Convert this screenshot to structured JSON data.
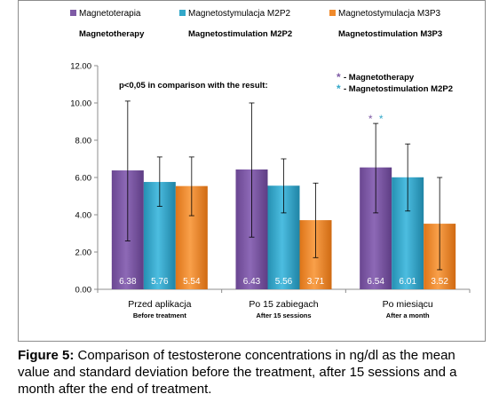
{
  "chart_data": {
    "type": "bar",
    "legend": [
      {
        "label": "Magnetoterapia",
        "sublabel": "Magnetotherapy",
        "color": "#7e5aa5"
      },
      {
        "label": "Magnetostymulacja M2P2",
        "sublabel": "Magnetostimulation M2P2",
        "color": "#33a8c9"
      },
      {
        "label": "Magnetostymulacja M3P3",
        "sublabel": "Magnetostimulation M3P3",
        "color": "#f08a2c"
      }
    ],
    "categories": [
      {
        "label": "Przed aplikacja",
        "sublabel": "Before treatment"
      },
      {
        "label": "Po 15 zabiegach",
        "sublabel": "After 15 sessions"
      },
      {
        "label": "Po miesiącu",
        "sublabel": "After a month"
      }
    ],
    "series": [
      {
        "name": "Magnetoterapia",
        "values": [
          6.38,
          6.43,
          6.54
        ],
        "err_low": [
          2.6,
          2.8,
          4.1
        ],
        "err_high": [
          10.1,
          10.0,
          8.9
        ],
        "value_labels": [
          "6.38",
          "6.43",
          "6.54"
        ]
      },
      {
        "name": "Magnetostymulacja M2P2",
        "values": [
          5.76,
          5.56,
          6.01
        ],
        "err_low": [
          4.45,
          4.1,
          4.2
        ],
        "err_high": [
          7.1,
          7.0,
          7.8
        ],
        "value_labels": [
          "5.76",
          "5.56",
          "6.01"
        ]
      },
      {
        "name": "Magnetostymulacja M3P3",
        "values": [
          5.54,
          3.71,
          3.52
        ],
        "err_low": [
          3.95,
          1.7,
          1.05
        ],
        "err_high": [
          7.1,
          5.7,
          6.0
        ],
        "value_labels": [
          "5.54",
          "3.71",
          "3.52"
        ]
      }
    ],
    "ylim": [
      0,
      12
    ],
    "yticks": [
      "0.00",
      "2.00",
      "4.00",
      "6.00",
      "8.00",
      "10.00",
      "12.00"
    ],
    "ytick_values": [
      0,
      2,
      4,
      6,
      8,
      10,
      12
    ],
    "annotations": {
      "pvalue_text": "p<0,05 in comparison with the result:",
      "key_items": [
        {
          "symbol": "*",
          "text": "- Magnetotherapy",
          "color": "#7e5aa5"
        },
        {
          "symbol": "*",
          "text": "- Magnetostimulation M2P2",
          "color": "#33a8c9"
        }
      ],
      "significance_marks": [
        {
          "category_index": 2,
          "symbol": "*",
          "color": "#7e5aa5"
        },
        {
          "category_index": 2,
          "symbol": "*",
          "color": "#33a8c9"
        }
      ]
    },
    "grid": false,
    "legend_position": "top"
  },
  "caption": {
    "label": "Figure 5:",
    "text": " Comparison of testosterone concentrations in ng/dl as the mean value and standard deviation before the treatment, after 15 sessions and a month after the end of treatment."
  }
}
